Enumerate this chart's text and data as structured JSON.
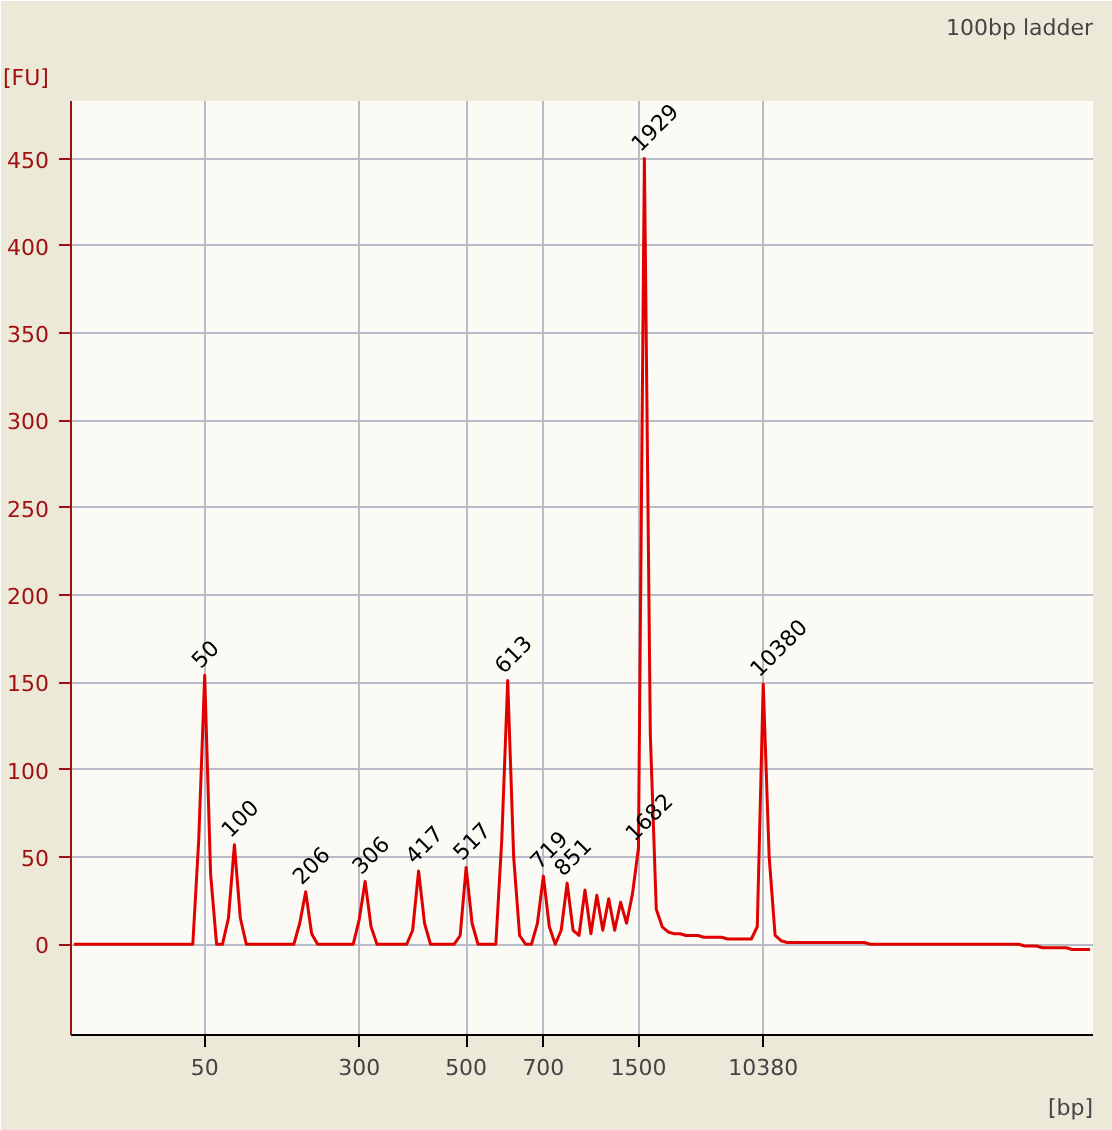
{
  "chart_data": {
    "type": "line",
    "title": "100bp ladder",
    "xlabel": "[bp]",
    "ylabel": "[FU]",
    "categories": [
      null,
      null,
      null,
      null,
      null,
      null,
      null,
      null,
      null,
      null,
      null,
      null,
      null,
      null,
      null,
      null,
      null,
      null,
      null,
      null,
      null,
      null,
      "50",
      null,
      null,
      null,
      null,
      null,
      null,
      null,
      null,
      null,
      null,
      null,
      null,
      null,
      null,
      null,
      null,
      null,
      null,
      null,
      null,
      null,
      null,
      null,
      null,
      null,
      "300",
      null,
      null,
      null,
      null,
      null,
      null,
      null,
      null,
      null,
      null,
      null,
      null,
      null,
      null,
      null,
      null,
      null,
      "500",
      null,
      null,
      null,
      null,
      null,
      null,
      null,
      null,
      null,
      null,
      null,
      null,
      "700",
      null,
      null,
      null,
      null,
      null,
      null,
      null,
      null,
      null,
      null,
      null,
      null,
      null,
      null,
      null,
      "1500",
      null,
      null,
      null,
      null,
      null,
      null,
      null,
      null,
      null,
      null,
      null,
      null,
      null,
      null,
      null,
      null,
      null,
      null,
      null,
      null,
      "10380",
      null,
      null,
      null,
      null,
      null,
      null,
      null,
      null,
      null,
      null,
      null,
      null,
      null,
      null,
      null,
      null,
      null,
      null,
      null,
      null,
      null,
      null,
      null,
      null,
      null,
      null,
      null,
      null,
      null,
      null,
      null,
      null,
      null,
      null,
      null,
      null,
      null,
      null,
      null,
      null,
      null,
      null,
      null,
      null,
      null,
      null,
      null,
      null,
      null,
      null,
      null,
      null,
      null,
      null,
      null
    ],
    "series": [
      {
        "color": "#e00000",
        "values": [
          0,
          0,
          0,
          0,
          0,
          0,
          0,
          0,
          0,
          0,
          0,
          0,
          0,
          0,
          0,
          0,
          0,
          0,
          0,
          0,
          0,
          60,
          154,
          40,
          0,
          0,
          15,
          57,
          15,
          0,
          0,
          0,
          0,
          0,
          0,
          0,
          0,
          0,
          12,
          30,
          6,
          0,
          0,
          0,
          0,
          0,
          0,
          0,
          14,
          36,
          10,
          0,
          0,
          0,
          0,
          0,
          0,
          8,
          42,
          12,
          0,
          0,
          0,
          0,
          0,
          5,
          44,
          12,
          0,
          0,
          0,
          0,
          60,
          151,
          50,
          5,
          0,
          0,
          12,
          39,
          10,
          0,
          8,
          35,
          8,
          5,
          31,
          6,
          28,
          8,
          26,
          8,
          24,
          12,
          29,
          55,
          450,
          120,
          20,
          10,
          7,
          6,
          6,
          5,
          5,
          5,
          4,
          4,
          4,
          4,
          3,
          3,
          3,
          3,
          3,
          10,
          149,
          50,
          5,
          2,
          1,
          1,
          1,
          1,
          1,
          1,
          1,
          1,
          1,
          1,
          1,
          1,
          1,
          1,
          0,
          0,
          0,
          0,
          0,
          0,
          0,
          0,
          0,
          0,
          0,
          0,
          0,
          0,
          0,
          0,
          0,
          0,
          0,
          0,
          0,
          0,
          0,
          0,
          0,
          0,
          -1,
          -1,
          -1,
          -2,
          -2,
          -2,
          -2,
          -2,
          -3,
          -3,
          -3,
          -3
        ]
      }
    ],
    "ylim": [
      -52,
      483
    ],
    "yticks": [
      0,
      50,
      100,
      150,
      200,
      250,
      300,
      350,
      400,
      450
    ],
    "grid": true,
    "marker": "none",
    "line_style": "solid",
    "annotations": [
      {
        "text": "50",
        "x": "50",
        "y": 154
      },
      {
        "text": "100",
        "y": 57
      },
      {
        "text": "206",
        "y": 30
      },
      {
        "text": "306",
        "y": 36
      },
      {
        "text": "417",
        "y": 42
      },
      {
        "text": "517",
        "y": 44
      },
      {
        "text": "613",
        "y": 151
      },
      {
        "text": "719",
        "y": 39
      },
      {
        "text": "851",
        "y": 35
      },
      {
        "text": "1682",
        "y": 55
      },
      {
        "text": "1929",
        "y": 450
      },
      {
        "text": "10380",
        "x": "10380",
        "y": 149
      }
    ]
  }
}
